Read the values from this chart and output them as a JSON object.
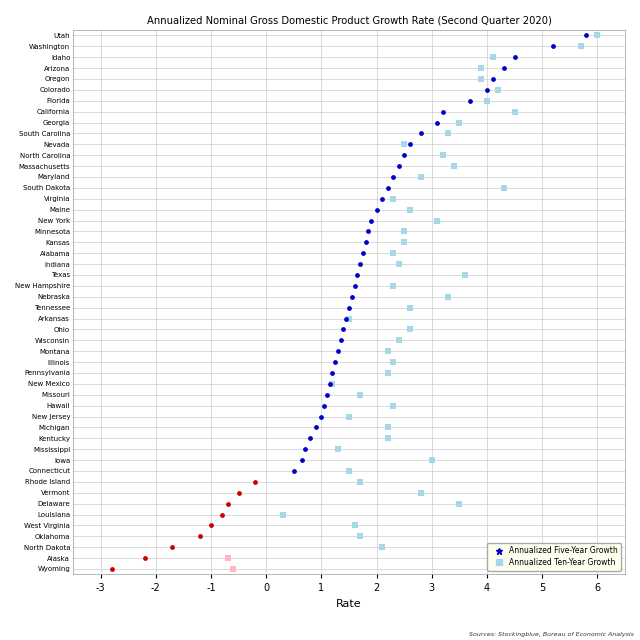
{
  "title": "Annualized Nominal Gross Domestic Product Growth Rate (Second Quarter 2020)",
  "xlabel": "Rate",
  "source": "Sources: Stockingblue, Bureau of Economic Analysis",
  "states": [
    "Utah",
    "Washington",
    "Idaho",
    "Arizona",
    "Oregon",
    "Colorado",
    "Florida",
    "California",
    "Georgia",
    "South Carolina",
    "Nevada",
    "North Carolina",
    "Massachusetts",
    "Maryland",
    "South Dakota",
    "Virginia",
    "Maine",
    "New York",
    "Minnesota",
    "Kansas",
    "Alabama",
    "Indiana",
    "Texas",
    "New Hampshire",
    "Nebraska",
    "Tennessee",
    "Arkansas",
    "Ohio",
    "Wisconsin",
    "Montana",
    "Illinois",
    "Pennsylvania",
    "New Mexico",
    "Missouri",
    "Hawaii",
    "New Jersey",
    "Michigan",
    "Kentucky",
    "Mississippi",
    "Iowa",
    "Connecticut",
    "Rhode Island",
    "Vermont",
    "Delaware",
    "Louisiana",
    "West Virginia",
    "Oklahoma",
    "North Dakota",
    "Alaska",
    "Wyoming"
  ],
  "five_year": [
    5.8,
    5.2,
    4.5,
    4.3,
    4.1,
    4.0,
    3.7,
    3.2,
    3.1,
    2.8,
    2.6,
    2.5,
    2.4,
    2.3,
    2.2,
    2.1,
    2.0,
    1.9,
    1.85,
    1.8,
    1.75,
    1.7,
    1.65,
    1.6,
    1.55,
    1.5,
    1.45,
    1.4,
    1.35,
    1.3,
    1.25,
    1.2,
    1.15,
    1.1,
    1.05,
    1.0,
    0.9,
    0.8,
    0.7,
    0.65,
    0.5,
    -0.2,
    -0.5,
    -0.7,
    -0.8,
    -1.0,
    -1.2,
    -1.7,
    -2.2,
    -2.8
  ],
  "ten_year": [
    6.0,
    5.7,
    4.1,
    3.9,
    3.9,
    4.2,
    4.0,
    4.5,
    3.5,
    3.3,
    2.5,
    3.2,
    3.4,
    2.8,
    4.3,
    2.3,
    2.6,
    3.1,
    2.5,
    2.5,
    2.3,
    2.4,
    3.6,
    2.3,
    3.3,
    2.6,
    1.5,
    2.6,
    2.4,
    2.2,
    2.3,
    2.2,
    1.2,
    1.7,
    2.3,
    1.5,
    2.2,
    2.2,
    1.3,
    3.0,
    1.5,
    1.7,
    2.8,
    3.5,
    0.3,
    1.6,
    1.7,
    2.1,
    -0.7,
    -0.6
  ],
  "dot_color_positive": "#0000CC",
  "dot_color_negative": "#CC0000",
  "square_color_positive": "#A8D8E8",
  "square_color_negative": "#FFB6C1",
  "bg_color": "#ffffff",
  "plot_bg_color": "#ffffff",
  "grid_color": "#cccccc",
  "xlim": [
    -3.5,
    6.5
  ],
  "xticks": [
    -3,
    -2,
    -1,
    0,
    1,
    2,
    3,
    4,
    5,
    6
  ]
}
